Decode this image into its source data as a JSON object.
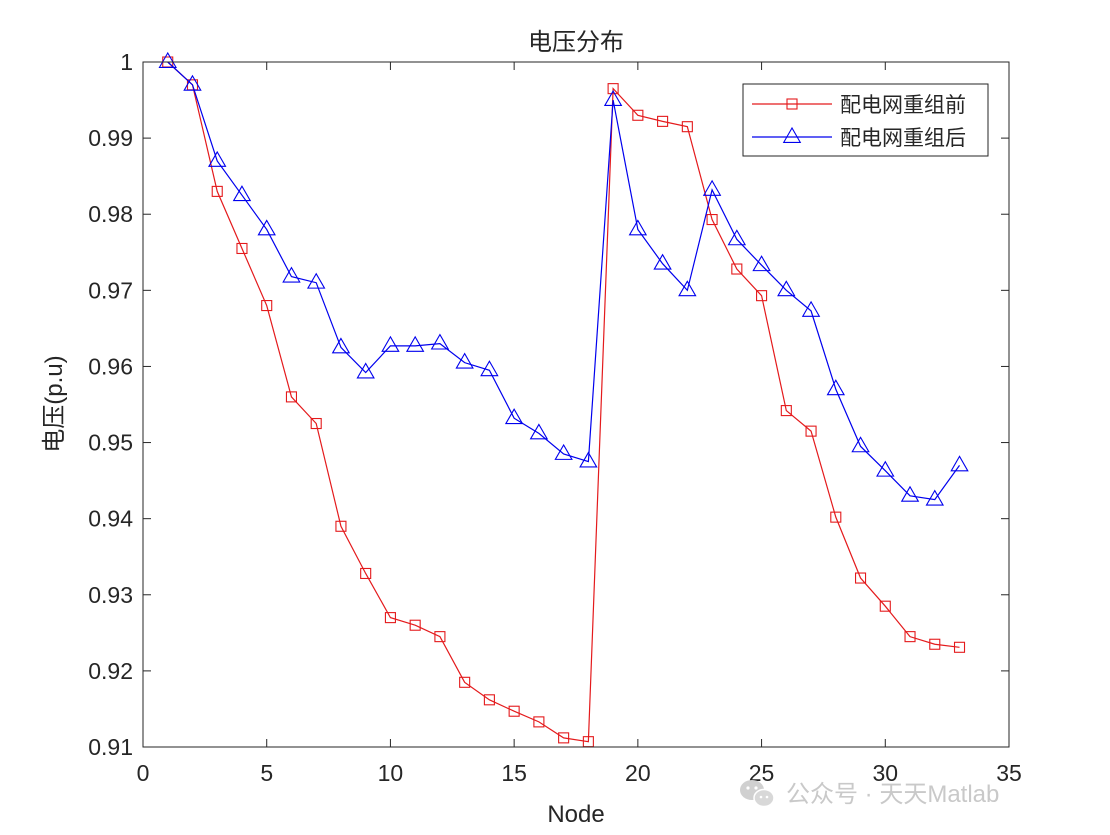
{
  "chart_data": {
    "type": "line",
    "title": "电压分布",
    "xlabel": "Node",
    "ylabel": "电压(p.u)",
    "xlim": [
      0,
      35
    ],
    "ylim": [
      0.91,
      1.0
    ],
    "xticks": [
      0,
      5,
      10,
      15,
      20,
      25,
      30,
      35
    ],
    "yticks": [
      0.91,
      0.92,
      0.93,
      0.94,
      0.95,
      0.96,
      0.97,
      0.98,
      0.99,
      1.0
    ],
    "ytick_labels": [
      "0.91",
      "0.92",
      "0.93",
      "0.94",
      "0.95",
      "0.96",
      "0.97",
      "0.98",
      "0.99",
      "1"
    ],
    "grid": false,
    "legend_position": "top-right",
    "x": [
      1,
      2,
      3,
      4,
      5,
      6,
      7,
      8,
      9,
      10,
      11,
      12,
      13,
      14,
      15,
      16,
      17,
      18,
      19,
      20,
      21,
      22,
      23,
      24,
      25,
      26,
      27,
      28,
      29,
      30,
      31,
      32,
      33
    ],
    "series": [
      {
        "name": "配电网重组前",
        "color": "#e41a1c",
        "marker": "square",
        "values": [
          1.0,
          0.997,
          0.983,
          0.9755,
          0.968,
          0.956,
          0.9525,
          0.939,
          0.9328,
          0.927,
          0.926,
          0.9245,
          0.9185,
          0.9162,
          0.9147,
          0.9133,
          0.9112,
          0.9107,
          0.9965,
          0.993,
          0.9922,
          0.9915,
          0.9793,
          0.9728,
          0.9693,
          0.9542,
          0.9515,
          0.9402,
          0.9322,
          0.9285,
          0.9245,
          0.9235,
          0.9231
        ]
      },
      {
        "name": "配电网重组后",
        "color": "#0000ee",
        "marker": "triangle",
        "values": [
          1.0,
          0.997,
          0.987,
          0.9825,
          0.978,
          0.9718,
          0.971,
          0.9625,
          0.9592,
          0.9627,
          0.9627,
          0.963,
          0.9605,
          0.9595,
          0.9532,
          0.9512,
          0.9485,
          0.9475,
          0.995,
          0.978,
          0.9735,
          0.97,
          0.9832,
          0.9767,
          0.9733,
          0.97,
          0.9673,
          0.957,
          0.9495,
          0.9463,
          0.943,
          0.9425,
          0.947
        ]
      }
    ]
  },
  "watermark": {
    "icon": "wechat-icon",
    "text": "公众号 · 天天Matlab"
  }
}
